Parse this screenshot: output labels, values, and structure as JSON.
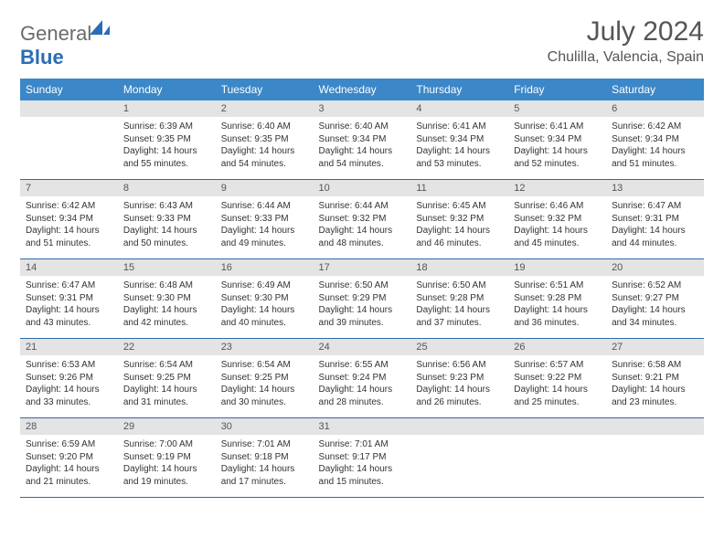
{
  "brand": {
    "name_part1": "General",
    "name_part2": "Blue"
  },
  "title": "July 2024",
  "location": "Chulilla, Valencia, Spain",
  "colors": {
    "header_bg": "#3b87c8",
    "header_text": "#ffffff",
    "daynum_bg": "#e4e4e4",
    "row_border": "#2f6aa8",
    "brand_gray": "#6b6b6b",
    "brand_blue": "#2a6db6"
  },
  "weekdays": [
    "Sunday",
    "Monday",
    "Tuesday",
    "Wednesday",
    "Thursday",
    "Friday",
    "Saturday"
  ],
  "weeks": [
    [
      {
        "num": "",
        "lines": []
      },
      {
        "num": "1",
        "lines": [
          "Sunrise: 6:39 AM",
          "Sunset: 9:35 PM",
          "Daylight: 14 hours",
          "and 55 minutes."
        ]
      },
      {
        "num": "2",
        "lines": [
          "Sunrise: 6:40 AM",
          "Sunset: 9:35 PM",
          "Daylight: 14 hours",
          "and 54 minutes."
        ]
      },
      {
        "num": "3",
        "lines": [
          "Sunrise: 6:40 AM",
          "Sunset: 9:34 PM",
          "Daylight: 14 hours",
          "and 54 minutes."
        ]
      },
      {
        "num": "4",
        "lines": [
          "Sunrise: 6:41 AM",
          "Sunset: 9:34 PM",
          "Daylight: 14 hours",
          "and 53 minutes."
        ]
      },
      {
        "num": "5",
        "lines": [
          "Sunrise: 6:41 AM",
          "Sunset: 9:34 PM",
          "Daylight: 14 hours",
          "and 52 minutes."
        ]
      },
      {
        "num": "6",
        "lines": [
          "Sunrise: 6:42 AM",
          "Sunset: 9:34 PM",
          "Daylight: 14 hours",
          "and 51 minutes."
        ]
      }
    ],
    [
      {
        "num": "7",
        "lines": [
          "Sunrise: 6:42 AM",
          "Sunset: 9:34 PM",
          "Daylight: 14 hours",
          "and 51 minutes."
        ]
      },
      {
        "num": "8",
        "lines": [
          "Sunrise: 6:43 AM",
          "Sunset: 9:33 PM",
          "Daylight: 14 hours",
          "and 50 minutes."
        ]
      },
      {
        "num": "9",
        "lines": [
          "Sunrise: 6:44 AM",
          "Sunset: 9:33 PM",
          "Daylight: 14 hours",
          "and 49 minutes."
        ]
      },
      {
        "num": "10",
        "lines": [
          "Sunrise: 6:44 AM",
          "Sunset: 9:32 PM",
          "Daylight: 14 hours",
          "and 48 minutes."
        ]
      },
      {
        "num": "11",
        "lines": [
          "Sunrise: 6:45 AM",
          "Sunset: 9:32 PM",
          "Daylight: 14 hours",
          "and 46 minutes."
        ]
      },
      {
        "num": "12",
        "lines": [
          "Sunrise: 6:46 AM",
          "Sunset: 9:32 PM",
          "Daylight: 14 hours",
          "and 45 minutes."
        ]
      },
      {
        "num": "13",
        "lines": [
          "Sunrise: 6:47 AM",
          "Sunset: 9:31 PM",
          "Daylight: 14 hours",
          "and 44 minutes."
        ]
      }
    ],
    [
      {
        "num": "14",
        "lines": [
          "Sunrise: 6:47 AM",
          "Sunset: 9:31 PM",
          "Daylight: 14 hours",
          "and 43 minutes."
        ]
      },
      {
        "num": "15",
        "lines": [
          "Sunrise: 6:48 AM",
          "Sunset: 9:30 PM",
          "Daylight: 14 hours",
          "and 42 minutes."
        ]
      },
      {
        "num": "16",
        "lines": [
          "Sunrise: 6:49 AM",
          "Sunset: 9:30 PM",
          "Daylight: 14 hours",
          "and 40 minutes."
        ]
      },
      {
        "num": "17",
        "lines": [
          "Sunrise: 6:50 AM",
          "Sunset: 9:29 PM",
          "Daylight: 14 hours",
          "and 39 minutes."
        ]
      },
      {
        "num": "18",
        "lines": [
          "Sunrise: 6:50 AM",
          "Sunset: 9:28 PM",
          "Daylight: 14 hours",
          "and 37 minutes."
        ]
      },
      {
        "num": "19",
        "lines": [
          "Sunrise: 6:51 AM",
          "Sunset: 9:28 PM",
          "Daylight: 14 hours",
          "and 36 minutes."
        ]
      },
      {
        "num": "20",
        "lines": [
          "Sunrise: 6:52 AM",
          "Sunset: 9:27 PM",
          "Daylight: 14 hours",
          "and 34 minutes."
        ]
      }
    ],
    [
      {
        "num": "21",
        "lines": [
          "Sunrise: 6:53 AM",
          "Sunset: 9:26 PM",
          "Daylight: 14 hours",
          "and 33 minutes."
        ]
      },
      {
        "num": "22",
        "lines": [
          "Sunrise: 6:54 AM",
          "Sunset: 9:25 PM",
          "Daylight: 14 hours",
          "and 31 minutes."
        ]
      },
      {
        "num": "23",
        "lines": [
          "Sunrise: 6:54 AM",
          "Sunset: 9:25 PM",
          "Daylight: 14 hours",
          "and 30 minutes."
        ]
      },
      {
        "num": "24",
        "lines": [
          "Sunrise: 6:55 AM",
          "Sunset: 9:24 PM",
          "Daylight: 14 hours",
          "and 28 minutes."
        ]
      },
      {
        "num": "25",
        "lines": [
          "Sunrise: 6:56 AM",
          "Sunset: 9:23 PM",
          "Daylight: 14 hours",
          "and 26 minutes."
        ]
      },
      {
        "num": "26",
        "lines": [
          "Sunrise: 6:57 AM",
          "Sunset: 9:22 PM",
          "Daylight: 14 hours",
          "and 25 minutes."
        ]
      },
      {
        "num": "27",
        "lines": [
          "Sunrise: 6:58 AM",
          "Sunset: 9:21 PM",
          "Daylight: 14 hours",
          "and 23 minutes."
        ]
      }
    ],
    [
      {
        "num": "28",
        "lines": [
          "Sunrise: 6:59 AM",
          "Sunset: 9:20 PM",
          "Daylight: 14 hours",
          "and 21 minutes."
        ]
      },
      {
        "num": "29",
        "lines": [
          "Sunrise: 7:00 AM",
          "Sunset: 9:19 PM",
          "Daylight: 14 hours",
          "and 19 minutes."
        ]
      },
      {
        "num": "30",
        "lines": [
          "Sunrise: 7:01 AM",
          "Sunset: 9:18 PM",
          "Daylight: 14 hours",
          "and 17 minutes."
        ]
      },
      {
        "num": "31",
        "lines": [
          "Sunrise: 7:01 AM",
          "Sunset: 9:17 PM",
          "Daylight: 14 hours",
          "and 15 minutes."
        ]
      },
      {
        "num": "",
        "lines": []
      },
      {
        "num": "",
        "lines": []
      },
      {
        "num": "",
        "lines": []
      }
    ]
  ]
}
